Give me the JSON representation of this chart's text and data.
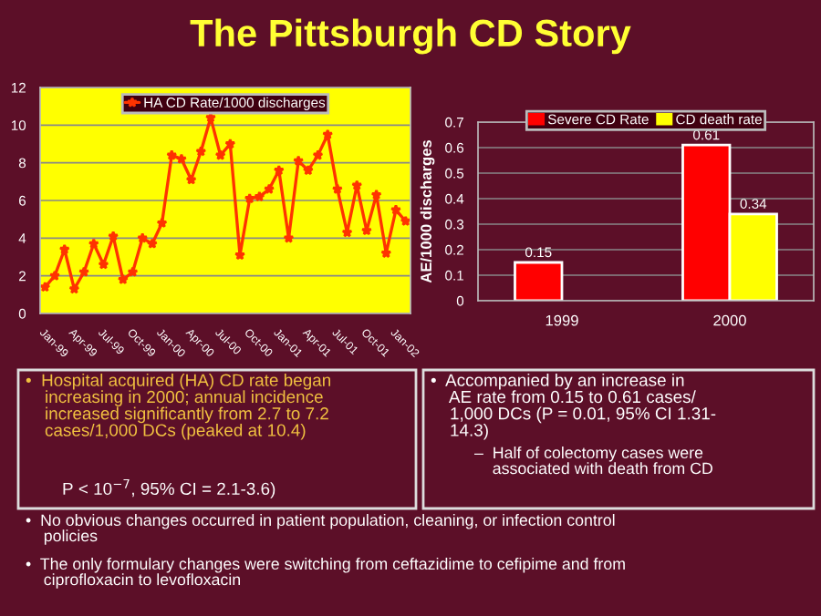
{
  "chart_data": [
    {
      "type": "line",
      "title": "The Pittsburgh CD Story",
      "categories": [
        "Jan-99",
        null,
        null,
        "Apr-99",
        null,
        null,
        "Jul-99",
        null,
        null,
        "Oct-99",
        null,
        null,
        "Jan-00",
        null,
        null,
        "Apr-00",
        null,
        null,
        "Jul-00",
        null,
        null,
        "Oct-00",
        null,
        null,
        "Jan-01",
        null,
        null,
        "Apr-01",
        null,
        null,
        "Jul-01",
        null,
        null,
        "Oct-01",
        null,
        null,
        "Jan-02",
        null
      ],
      "series": [
        {
          "name": "HA CD Rate/1000 discharges",
          "color": "#ff3300",
          "values": [
            1.4,
            2.0,
            3.4,
            1.3,
            2.2,
            3.7,
            2.6,
            4.1,
            1.8,
            2.2,
            4.0,
            3.7,
            4.8,
            8.4,
            8.2,
            7.1,
            8.6,
            10.4,
            8.4,
            9.0,
            3.1,
            6.1,
            6.2,
            6.6,
            7.6,
            4.0,
            8.1,
            7.6,
            8.4,
            9.5,
            6.6,
            4.3,
            6.8,
            4.4,
            6.3,
            3.2,
            5.5,
            4.9
          ]
        }
      ],
      "ylim": [
        0,
        12
      ],
      "yticks": [
        0,
        2,
        4,
        6,
        8,
        10,
        12
      ],
      "grid": "y",
      "legend": "top",
      "marker": "star",
      "line_style": "solid",
      "annotations": [
        "•  Hospital acquired (HA) CD rate began\n    increasing in 2000; annual incidence\n    increased significantly from 2.7 to 7.2\n    cases/1,000 DCs (peaked at 10.4)",
        "P < 10$^{−7}$, 95% CI = 2.1-3.6)",
        "•  No obvious changes occurred in patient population, cleaning, or infection control\n    policies",
        "•  The only formulary changes were switching from ceftazidime to cefipime and from\n    ciprofloxacin to levofloxacin"
      ]
    },
    {
      "type": "bar",
      "categories": [
        "1999",
        "2000"
      ],
      "ylabel": "AE/1000 discharges",
      "series": [
        {
          "name": "Severe CD Rate",
          "color": "#ff0000",
          "values": [
            0.15,
            0.61
          ]
        },
        {
          "name": "CD death rate",
          "color": "#ffff00",
          "values": [
            null,
            0.34
          ]
        }
      ],
      "ylim": [
        0,
        0.7
      ],
      "yticks": [
        0,
        0.1,
        0.2,
        0.3,
        0.4,
        0.5,
        0.6,
        0.7
      ],
      "grid": "y",
      "legend": "top",
      "data_labels": true,
      "annotations": [
        "•  Accompanied by an increase in\n    AE rate from 0.15 to 0.61 cases/\n    1,000 DCs (P = 0.01, 95% CI 1.31-\n    14.3)",
        "–  Half of colectomy cases were\n    associated with death from CD"
      ]
    }
  ]
}
